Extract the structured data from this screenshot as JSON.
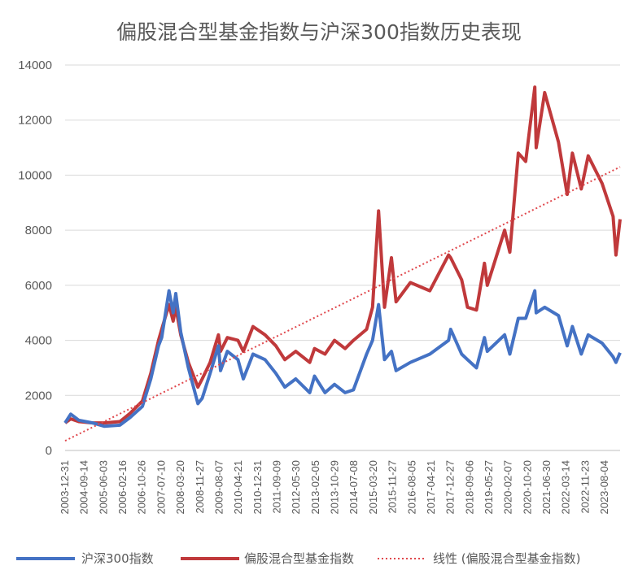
{
  "chart_data": {
    "type": "line",
    "title": "偏股混合型基金指数与沪深300指数历史表现",
    "ylim": [
      0,
      14000
    ],
    "yticks": [
      0,
      2000,
      4000,
      6000,
      8000,
      10000,
      12000,
      14000
    ],
    "ytick_labels": [
      "0",
      "2000",
      "4000",
      "6000",
      "8000",
      "10000",
      "12000",
      "14000"
    ],
    "x_range": [
      "2003-12-31",
      "2024-03-31"
    ],
    "xtick_labels": [
      "2003-12-31",
      "2004-09-14",
      "2005-06-03",
      "2006-02-16",
      "2006-10-26",
      "2007-07-10",
      "2008-03-20",
      "2008-11-27",
      "2009-08-07",
      "2010-04-21",
      "2010-12-31",
      "2011-09-09",
      "2012-05-30",
      "2013-02-05",
      "2013-10-29",
      "2014-07-08",
      "2015-03-20",
      "2015-11-27",
      "2016-08-05",
      "2017-04-21",
      "2017-12-27",
      "2018-09-06",
      "2019-05-27",
      "2020-02-07",
      "2020-10-20",
      "2021-06-30",
      "2022-03-14",
      "2022-11-23",
      "2023-08-04"
    ],
    "grid": true,
    "legend_position": "bottom",
    "series": [
      {
        "name": "沪深300指数",
        "color": "#4472C4",
        "style": "solid",
        "points": [
          [
            "2003-12-31",
            1000
          ],
          [
            "2004-03-15",
            1320
          ],
          [
            "2004-06-30",
            1100
          ],
          [
            "2004-12-31",
            1000
          ],
          [
            "2005-06-03",
            880
          ],
          [
            "2005-12-30",
            920
          ],
          [
            "2006-05-15",
            1200
          ],
          [
            "2006-10-26",
            1600
          ],
          [
            "2007-02-15",
            2600
          ],
          [
            "2007-05-29",
            3800
          ],
          [
            "2007-07-10",
            4100
          ],
          [
            "2007-10-16",
            5800
          ],
          [
            "2007-12-10",
            5000
          ],
          [
            "2008-01-14",
            5700
          ],
          [
            "2008-03-20",
            4300
          ],
          [
            "2008-06-30",
            3000
          ],
          [
            "2008-11-04",
            1700
          ],
          [
            "2008-12-31",
            1900
          ],
          [
            "2009-04-15",
            2800
          ],
          [
            "2009-08-04",
            3800
          ],
          [
            "2009-09-01",
            2900
          ],
          [
            "2009-12-01",
            3600
          ],
          [
            "2010-04-21",
            3300
          ],
          [
            "2010-07-02",
            2600
          ],
          [
            "2010-11-08",
            3500
          ],
          [
            "2011-04-18",
            3300
          ],
          [
            "2011-09-09",
            2800
          ],
          [
            "2012-01-06",
            2300
          ],
          [
            "2012-05-30",
            2600
          ],
          [
            "2012-12-03",
            2100
          ],
          [
            "2013-02-05",
            2700
          ],
          [
            "2013-06-25",
            2100
          ],
          [
            "2013-10-29",
            2400
          ],
          [
            "2014-03-20",
            2100
          ],
          [
            "2014-07-08",
            2200
          ],
          [
            "2014-12-31",
            3500
          ],
          [
            "2015-03-20",
            4000
          ],
          [
            "2015-06-08",
            5300
          ],
          [
            "2015-08-26",
            3300
          ],
          [
            "2015-11-27",
            3600
          ],
          [
            "2016-01-28",
            2900
          ],
          [
            "2016-08-05",
            3200
          ],
          [
            "2017-04-21",
            3500
          ],
          [
            "2017-12-27",
            4000
          ],
          [
            "2018-01-24",
            4400
          ],
          [
            "2018-06-20",
            3500
          ],
          [
            "2018-09-06",
            3300
          ],
          [
            "2019-01-03",
            3000
          ],
          [
            "2019-04-19",
            4100
          ],
          [
            "2019-05-27",
            3600
          ],
          [
            "2020-01-13",
            4200
          ],
          [
            "2020-03-23",
            3500
          ],
          [
            "2020-07-13",
            4800
          ],
          [
            "2020-10-20",
            4800
          ],
          [
            "2021-02-18",
            5800
          ],
          [
            "2021-03-09",
            5000
          ],
          [
            "2021-06-30",
            5200
          ],
          [
            "2021-12-31",
            4900
          ],
          [
            "2022-04-26",
            3800
          ],
          [
            "2022-07-05",
            4500
          ],
          [
            "2022-10-31",
            3500
          ],
          [
            "2023-01-31",
            4200
          ],
          [
            "2023-08-04",
            3900
          ],
          [
            "2023-12-29",
            3400
          ],
          [
            "2024-02-05",
            3200
          ],
          [
            "2024-03-31",
            3550
          ]
        ]
      },
      {
        "name": "偏股混合型基金指数",
        "color": "#C0393B",
        "style": "solid",
        "points": [
          [
            "2003-12-31",
            1000
          ],
          [
            "2004-03-15",
            1150
          ],
          [
            "2004-06-30",
            1050
          ],
          [
            "2004-12-31",
            1000
          ],
          [
            "2005-06-03",
            1000
          ],
          [
            "2005-12-30",
            1050
          ],
          [
            "2006-05-15",
            1350
          ],
          [
            "2006-10-26",
            1800
          ],
          [
            "2007-02-15",
            2800
          ],
          [
            "2007-05-29",
            4000
          ],
          [
            "2007-07-10",
            4400
          ],
          [
            "2007-10-16",
            5300
          ],
          [
            "2007-12-10",
            4700
          ],
          [
            "2008-01-14",
            5200
          ],
          [
            "2008-03-20",
            4200
          ],
          [
            "2008-06-30",
            3200
          ],
          [
            "2008-11-04",
            2300
          ],
          [
            "2008-12-31",
            2600
          ],
          [
            "2009-04-15",
            3200
          ],
          [
            "2009-08-04",
            4200
          ],
          [
            "2009-09-01",
            3600
          ],
          [
            "2009-12-01",
            4100
          ],
          [
            "2010-04-21",
            4000
          ],
          [
            "2010-07-02",
            3600
          ],
          [
            "2010-11-08",
            4500
          ],
          [
            "2011-04-18",
            4200
          ],
          [
            "2011-09-09",
            3800
          ],
          [
            "2012-01-06",
            3300
          ],
          [
            "2012-05-30",
            3600
          ],
          [
            "2012-12-03",
            3200
          ],
          [
            "2013-02-05",
            3700
          ],
          [
            "2013-06-25",
            3500
          ],
          [
            "2013-10-29",
            4000
          ],
          [
            "2014-03-20",
            3700
          ],
          [
            "2014-07-08",
            4000
          ],
          [
            "2014-12-31",
            4400
          ],
          [
            "2015-03-20",
            5200
          ],
          [
            "2015-06-08",
            8700
          ],
          [
            "2015-08-26",
            5200
          ],
          [
            "2015-11-27",
            7000
          ],
          [
            "2016-01-28",
            5400
          ],
          [
            "2016-08-05",
            6100
          ],
          [
            "2017-04-21",
            5800
          ],
          [
            "2017-12-27",
            7100
          ],
          [
            "2018-01-24",
            7000
          ],
          [
            "2018-06-20",
            6200
          ],
          [
            "2018-09-06",
            5200
          ],
          [
            "2019-01-03",
            5100
          ],
          [
            "2019-04-19",
            6800
          ],
          [
            "2019-05-27",
            6000
          ],
          [
            "2020-01-13",
            8000
          ],
          [
            "2020-03-23",
            7200
          ],
          [
            "2020-07-13",
            10800
          ],
          [
            "2020-10-20",
            10500
          ],
          [
            "2021-02-18",
            13200
          ],
          [
            "2021-03-09",
            11000
          ],
          [
            "2021-06-30",
            13000
          ],
          [
            "2021-12-31",
            11200
          ],
          [
            "2022-04-26",
            9300
          ],
          [
            "2022-07-05",
            10800
          ],
          [
            "2022-10-31",
            9500
          ],
          [
            "2023-01-31",
            10700
          ],
          [
            "2023-08-04",
            9700
          ],
          [
            "2023-12-29",
            8500
          ],
          [
            "2024-02-05",
            7100
          ],
          [
            "2024-03-31",
            8400
          ]
        ]
      },
      {
        "name": "线性 (偏股混合型基金指数)",
        "color": "#E0474C",
        "style": "dotted",
        "points": [
          [
            "2003-12-31",
            350
          ],
          [
            "2024-03-31",
            10300
          ]
        ]
      }
    ]
  }
}
